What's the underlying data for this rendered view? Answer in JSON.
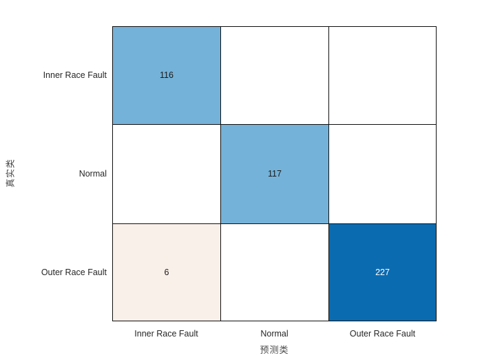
{
  "figure": {
    "background": "#ffffff",
    "grid_color": "#0f0f0f"
  },
  "chart_data": {
    "type": "heatmap",
    "subtype": "confusion_matrix",
    "title": "",
    "xlabel": "预测类",
    "ylabel": "真实类",
    "x_categories": [
      "Inner Race Fault",
      "Normal",
      "Outer Race Fault"
    ],
    "y_categories": [
      "Inner Race Fault",
      "Normal",
      "Outer Race Fault"
    ],
    "matrix": [
      [
        116,
        0,
        0
      ],
      [
        0,
        117,
        0
      ],
      [
        6,
        0,
        227
      ]
    ],
    "zero_cells_shown_blank": true,
    "colors": {
      "diagonal_mid_blue": "#74b2d9",
      "diagonal_dark_blue": "#0b6bb1",
      "offdiagonal_light_orange": "#faf0ea",
      "empty_cell": "#ffffff",
      "cell_text_dark": "#1a1a1a",
      "cell_text_light": "#ffffff",
      "grid_line": "#0f0f0f",
      "tick_label": "#262626",
      "axis_label": "#4a4a4a"
    },
    "cells": [
      {
        "row": 0,
        "col": 0,
        "label": "116",
        "bg": "#74b2d9",
        "fg": "#1a1a1a"
      },
      {
        "row": 0,
        "col": 1,
        "label": "",
        "bg": "#ffffff",
        "fg": "#1a1a1a"
      },
      {
        "row": 0,
        "col": 2,
        "label": "",
        "bg": "#ffffff",
        "fg": "#1a1a1a"
      },
      {
        "row": 1,
        "col": 0,
        "label": "",
        "bg": "#ffffff",
        "fg": "#1a1a1a"
      },
      {
        "row": 1,
        "col": 1,
        "label": "117",
        "bg": "#74b2d9",
        "fg": "#1a1a1a"
      },
      {
        "row": 1,
        "col": 2,
        "label": "",
        "bg": "#ffffff",
        "fg": "#1a1a1a"
      },
      {
        "row": 2,
        "col": 0,
        "label": "6",
        "bg": "#faf0ea",
        "fg": "#1a1a1a"
      },
      {
        "row": 2,
        "col": 1,
        "label": "",
        "bg": "#ffffff",
        "fg": "#1a1a1a"
      },
      {
        "row": 2,
        "col": 2,
        "label": "227",
        "bg": "#0b6bb1",
        "fg": "#ffffff"
      }
    ]
  }
}
